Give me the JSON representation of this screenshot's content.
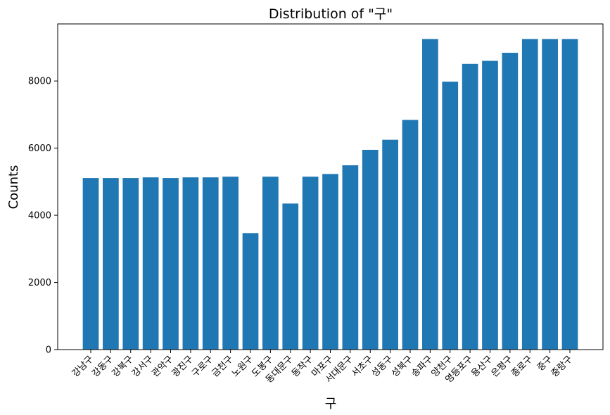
{
  "chart_data": {
    "type": "bar",
    "title": "Distribution of \"구\"",
    "xlabel": "구",
    "ylabel": "Counts",
    "ylim": [
      0,
      9700
    ],
    "yticks": [
      0,
      2000,
      4000,
      6000,
      8000
    ],
    "grid": false,
    "colors": {
      "bar": "#1f77b4"
    },
    "categories": [
      "강남구",
      "강동구",
      "강북구",
      "강서구",
      "관악구",
      "광진구",
      "구로구",
      "금천구",
      "노원구",
      "도봉구",
      "동대문구",
      "동작구",
      "마포구",
      "서대문구",
      "서초구",
      "성동구",
      "성북구",
      "송파구",
      "양천구",
      "영등포구",
      "용산구",
      "은평구",
      "종로구",
      "중구",
      "중랑구"
    ],
    "values": [
      5110,
      5110,
      5110,
      5130,
      5110,
      5130,
      5130,
      5150,
      3470,
      5150,
      4350,
      5150,
      5230,
      5490,
      5950,
      6250,
      6840,
      9250,
      7980,
      8510,
      8600,
      8840,
      9250,
      9250,
      9250
    ]
  }
}
